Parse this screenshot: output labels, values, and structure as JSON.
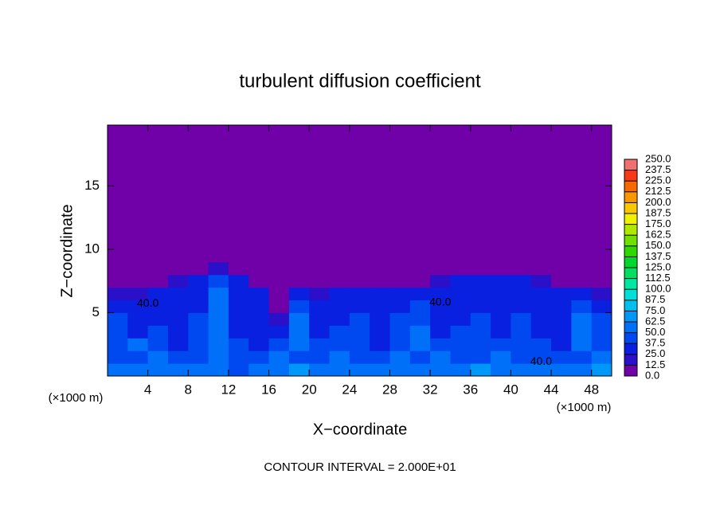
{
  "chart_data": {
    "type": "heatmap",
    "title": "turbulent diffusion coefficient",
    "xlabel": "X−coordinate",
    "ylabel": "Z−coordinate",
    "x_unit": "(×1000 m)",
    "z_unit": "(×1000 m)",
    "footer": "CONTOUR INTERVAL = 2.000E+01",
    "xlim": [
      0,
      50
    ],
    "ylim": [
      0,
      19.8
    ],
    "xticks": [
      4,
      8,
      12,
      16,
      20,
      24,
      28,
      32,
      36,
      40,
      44,
      48
    ],
    "yticks": [
      5,
      10,
      15
    ],
    "x": [
      1,
      3,
      5,
      7,
      9,
      11,
      13,
      15,
      17,
      19,
      21,
      23,
      25,
      27,
      29,
      31,
      33,
      35,
      37,
      39,
      41,
      43,
      45,
      47,
      49
    ],
    "z": [
      0.5,
      1.5,
      2.5,
      3.5,
      4.5,
      5.5,
      6.5,
      7.5,
      8.5,
      9.5,
      10.5,
      11.5,
      12.5,
      13.5,
      14.5,
      15.5,
      16.5,
      17.5,
      18.5,
      19.5
    ],
    "values": [
      [
        60,
        55,
        50,
        58,
        62,
        55,
        48,
        52,
        60,
        65,
        58,
        50,
        55,
        62,
        60,
        56,
        52,
        58,
        64,
        60,
        55,
        50,
        58,
        62,
        66
      ],
      [
        45,
        40,
        55,
        42,
        38,
        60,
        44,
        48,
        62,
        40,
        42,
        58,
        45,
        40,
        50,
        44,
        60,
        42,
        46,
        52,
        40,
        44,
        48,
        40,
        55
      ],
      [
        40,
        50,
        38,
        36,
        44,
        62,
        40,
        36,
        42,
        58,
        38,
        40,
        48,
        36,
        42,
        55,
        38,
        40,
        44,
        38,
        42,
        38,
        36,
        60,
        42
      ],
      [
        38,
        36,
        44,
        34,
        40,
        58,
        36,
        34,
        30,
        50,
        36,
        38,
        42,
        34,
        38,
        52,
        36,
        38,
        40,
        36,
        40,
        36,
        34,
        55,
        40
      ],
      [
        44,
        34,
        36,
        32,
        38,
        56,
        34,
        32,
        20,
        60,
        34,
        36,
        38,
        32,
        40,
        48,
        34,
        36,
        38,
        34,
        38,
        34,
        32,
        50,
        38
      ],
      [
        36,
        32,
        34,
        30,
        36,
        54,
        32,
        30,
        10,
        40,
        32,
        30,
        34,
        30,
        36,
        44,
        32,
        34,
        36,
        32,
        36,
        32,
        30,
        44,
        34
      ],
      [
        20,
        20,
        28,
        28,
        34,
        50,
        30,
        28,
        5,
        30,
        20,
        25,
        25,
        28,
        28,
        36,
        30,
        32,
        34,
        30,
        32,
        28,
        25,
        25,
        20
      ],
      [
        5,
        5,
        5,
        15,
        28,
        40,
        25,
        10,
        3,
        5,
        5,
        5,
        5,
        5,
        10,
        10,
        22,
        28,
        30,
        28,
        28,
        15,
        8,
        5,
        5
      ],
      [
        0,
        0,
        0,
        0,
        12,
        20,
        5,
        0,
        0,
        0,
        0,
        0,
        0,
        0,
        0,
        0,
        0,
        5,
        5,
        5,
        5,
        0,
        0,
        0,
        0
      ],
      [
        0,
        0,
        0,
        0,
        5,
        8,
        0,
        0,
        0,
        0,
        0,
        0,
        0,
        0,
        0,
        0,
        0,
        0,
        0,
        0,
        0,
        0,
        0,
        0,
        0
      ],
      [
        0,
        0,
        0,
        0,
        0,
        0,
        0,
        0,
        0,
        0,
        0,
        0,
        0,
        0,
        0,
        0,
        0,
        0,
        0,
        0,
        0,
        0,
        0,
        0,
        0
      ],
      [
        0,
        0,
        0,
        0,
        0,
        0,
        0,
        0,
        0,
        0,
        0,
        0,
        0,
        0,
        0,
        0,
        0,
        0,
        0,
        0,
        0,
        0,
        0,
        0,
        0
      ],
      [
        0,
        0,
        0,
        0,
        0,
        0,
        0,
        0,
        0,
        0,
        0,
        0,
        0,
        0,
        0,
        0,
        0,
        0,
        0,
        0,
        0,
        0,
        0,
        0,
        0
      ],
      [
        0,
        0,
        0,
        0,
        0,
        0,
        0,
        0,
        0,
        0,
        0,
        0,
        0,
        0,
        0,
        0,
        0,
        0,
        0,
        0,
        0,
        0,
        0,
        0,
        0
      ],
      [
        0,
        0,
        0,
        0,
        0,
        0,
        0,
        0,
        0,
        0,
        0,
        0,
        0,
        0,
        0,
        0,
        0,
        0,
        0,
        0,
        0,
        0,
        0,
        0,
        0
      ],
      [
        0,
        0,
        0,
        0,
        0,
        0,
        0,
        0,
        0,
        0,
        0,
        0,
        0,
        0,
        0,
        0,
        0,
        0,
        0,
        0,
        0,
        0,
        0,
        0,
        0
      ],
      [
        0,
        0,
        0,
        0,
        0,
        0,
        0,
        0,
        0,
        0,
        0,
        0,
        0,
        0,
        0,
        0,
        0,
        0,
        0,
        0,
        0,
        0,
        0,
        0,
        0
      ],
      [
        0,
        0,
        0,
        0,
        0,
        0,
        0,
        0,
        0,
        0,
        0,
        0,
        0,
        0,
        0,
        0,
        0,
        0,
        0,
        0,
        0,
        0,
        0,
        0,
        0
      ],
      [
        0,
        0,
        0,
        0,
        0,
        0,
        0,
        0,
        0,
        0,
        0,
        0,
        0,
        0,
        0,
        0,
        0,
        0,
        0,
        0,
        0,
        0,
        0,
        0,
        0
      ],
      [
        0,
        0,
        0,
        0,
        0,
        0,
        0,
        0,
        0,
        0,
        0,
        0,
        0,
        0,
        0,
        0,
        0,
        0,
        0,
        0,
        0,
        0,
        0,
        0,
        0
      ]
    ],
    "contour_labels": [
      {
        "text": "40.0",
        "x": 4,
        "z": 5.7
      },
      {
        "text": "40.0",
        "x": 33,
        "z": 5.8
      },
      {
        "text": "40.0",
        "x": 43,
        "z": 1.1
      }
    ],
    "colorbar": {
      "levels": [
        {
          "value": 0,
          "label": "0.0"
        },
        {
          "value": 12.5,
          "label": "12.5"
        },
        {
          "value": 25,
          "label": "25.0"
        },
        {
          "value": 37.5,
          "label": "37.5"
        },
        {
          "value": 50,
          "label": "50.0"
        },
        {
          "value": 62.5,
          "label": "62.5"
        },
        {
          "value": 75,
          "label": "75.0"
        },
        {
          "value": 87.5,
          "label": "87.5"
        },
        {
          "value": 100,
          "label": "100.0"
        },
        {
          "value": 112.5,
          "label": "112.5"
        },
        {
          "value": 125,
          "label": "125.0"
        },
        {
          "value": 137.5,
          "label": "137.5"
        },
        {
          "value": 150,
          "label": "150.0"
        },
        {
          "value": 162.5,
          "label": "162.5"
        },
        {
          "value": 175,
          "label": "175.0"
        },
        {
          "value": 187.5,
          "label": "187.5"
        },
        {
          "value": 200,
          "label": "200.0"
        },
        {
          "value": 212.5,
          "label": "212.5"
        },
        {
          "value": 225,
          "label": "225.0"
        },
        {
          "value": 237.5,
          "label": "237.5"
        },
        {
          "value": 250,
          "label": "250.0"
        }
      ],
      "colors": [
        "#7000a8",
        "#2a10c8",
        "#0a20e0",
        "#0048f0",
        "#0070f8",
        "#0098f8",
        "#00c0f0",
        "#00e0d8",
        "#00e8a0",
        "#00e060",
        "#00d830",
        "#30d800",
        "#70e000",
        "#b0e800",
        "#f0f000",
        "#f8c800",
        "#f89800",
        "#f86800",
        "#f83818",
        "#f07070"
      ]
    }
  }
}
